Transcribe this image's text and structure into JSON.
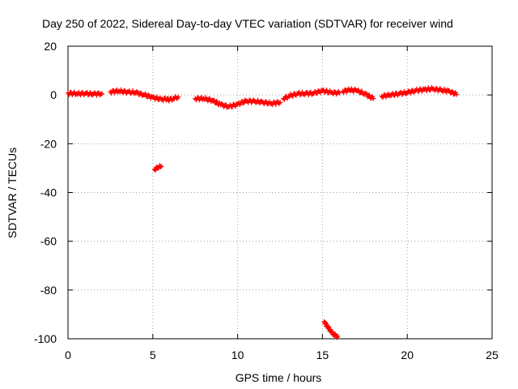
{
  "chart_data": {
    "type": "scatter",
    "title": "Day 250 of 2022, Sidereal Day-to-day VTEC variation (SDTVAR) for receiver wind",
    "xlabel": "GPS time / hours",
    "ylabel": "SDTVAR / TECUs",
    "xlim": [
      0,
      25
    ],
    "ylim": [
      -100,
      20
    ],
    "xticks": [
      0,
      5,
      10,
      15,
      20,
      25
    ],
    "yticks": [
      20,
      0,
      -20,
      -40,
      -60,
      -80,
      -100
    ],
    "grid": true,
    "point_color": "#ff0000",
    "series": [
      {
        "name": "SDTVAR",
        "segments": [
          {
            "x": [
              0.0,
              0.5,
              1.0,
              1.5,
              2.0
            ],
            "y": [
              0.8,
              0.5,
              0.6,
              0.4,
              0.5
            ]
          },
          {
            "x": [
              2.5,
              3.0,
              3.5,
              4.0,
              4.5,
              5.0,
              5.5,
              5.9
            ],
            "y": [
              1.3,
              1.6,
              1.2,
              1.0,
              0.0,
              -1.0,
              -1.8,
              -1.5
            ]
          },
          {
            "x": [
              5.1,
              5.3,
              5.5
            ],
            "y": [
              -30.5,
              -29.8,
              -29.3
            ]
          },
          {
            "x": [
              5.9,
              6.2,
              6.5
            ],
            "y": [
              -2.0,
              -1.5,
              -0.8
            ]
          },
          {
            "x": [
              7.5,
              8.0,
              8.5,
              9.0,
              9.5,
              10.0,
              10.5,
              11.0,
              11.5,
              12.0,
              12.5
            ],
            "y": [
              -1.5,
              -1.5,
              -2.2,
              -4.0,
              -4.8,
              -3.8,
              -2.5,
              -2.6,
              -3.0,
              -3.5,
              -3.0
            ]
          },
          {
            "x": [
              12.7,
              13.0,
              13.5,
              14.0,
              14.5,
              15.0,
              15.5,
              16.0
            ],
            "y": [
              -1.5,
              -0.5,
              0.5,
              0.6,
              0.7,
              1.8,
              1.0,
              0.8
            ]
          },
          {
            "x": [
              16.2,
              16.6,
              17.0,
              17.5,
              18.0
            ],
            "y": [
              1.5,
              2.0,
              1.8,
              0.5,
              -1.5
            ]
          },
          {
            "x": [
              15.1,
              15.3,
              15.5,
              15.7,
              15.9
            ],
            "y": [
              -93.0,
              -95.0,
              -97.0,
              -98.5,
              -99.0
            ]
          },
          {
            "x": [
              18.5,
              19.0,
              19.5,
              20.0,
              20.5,
              21.0,
              21.5,
              22.0,
              22.5,
              22.9
            ],
            "y": [
              -0.5,
              0.0,
              0.5,
              1.0,
              1.8,
              2.2,
              2.5,
              2.0,
              1.5,
              0.2
            ]
          }
        ]
      }
    ]
  }
}
